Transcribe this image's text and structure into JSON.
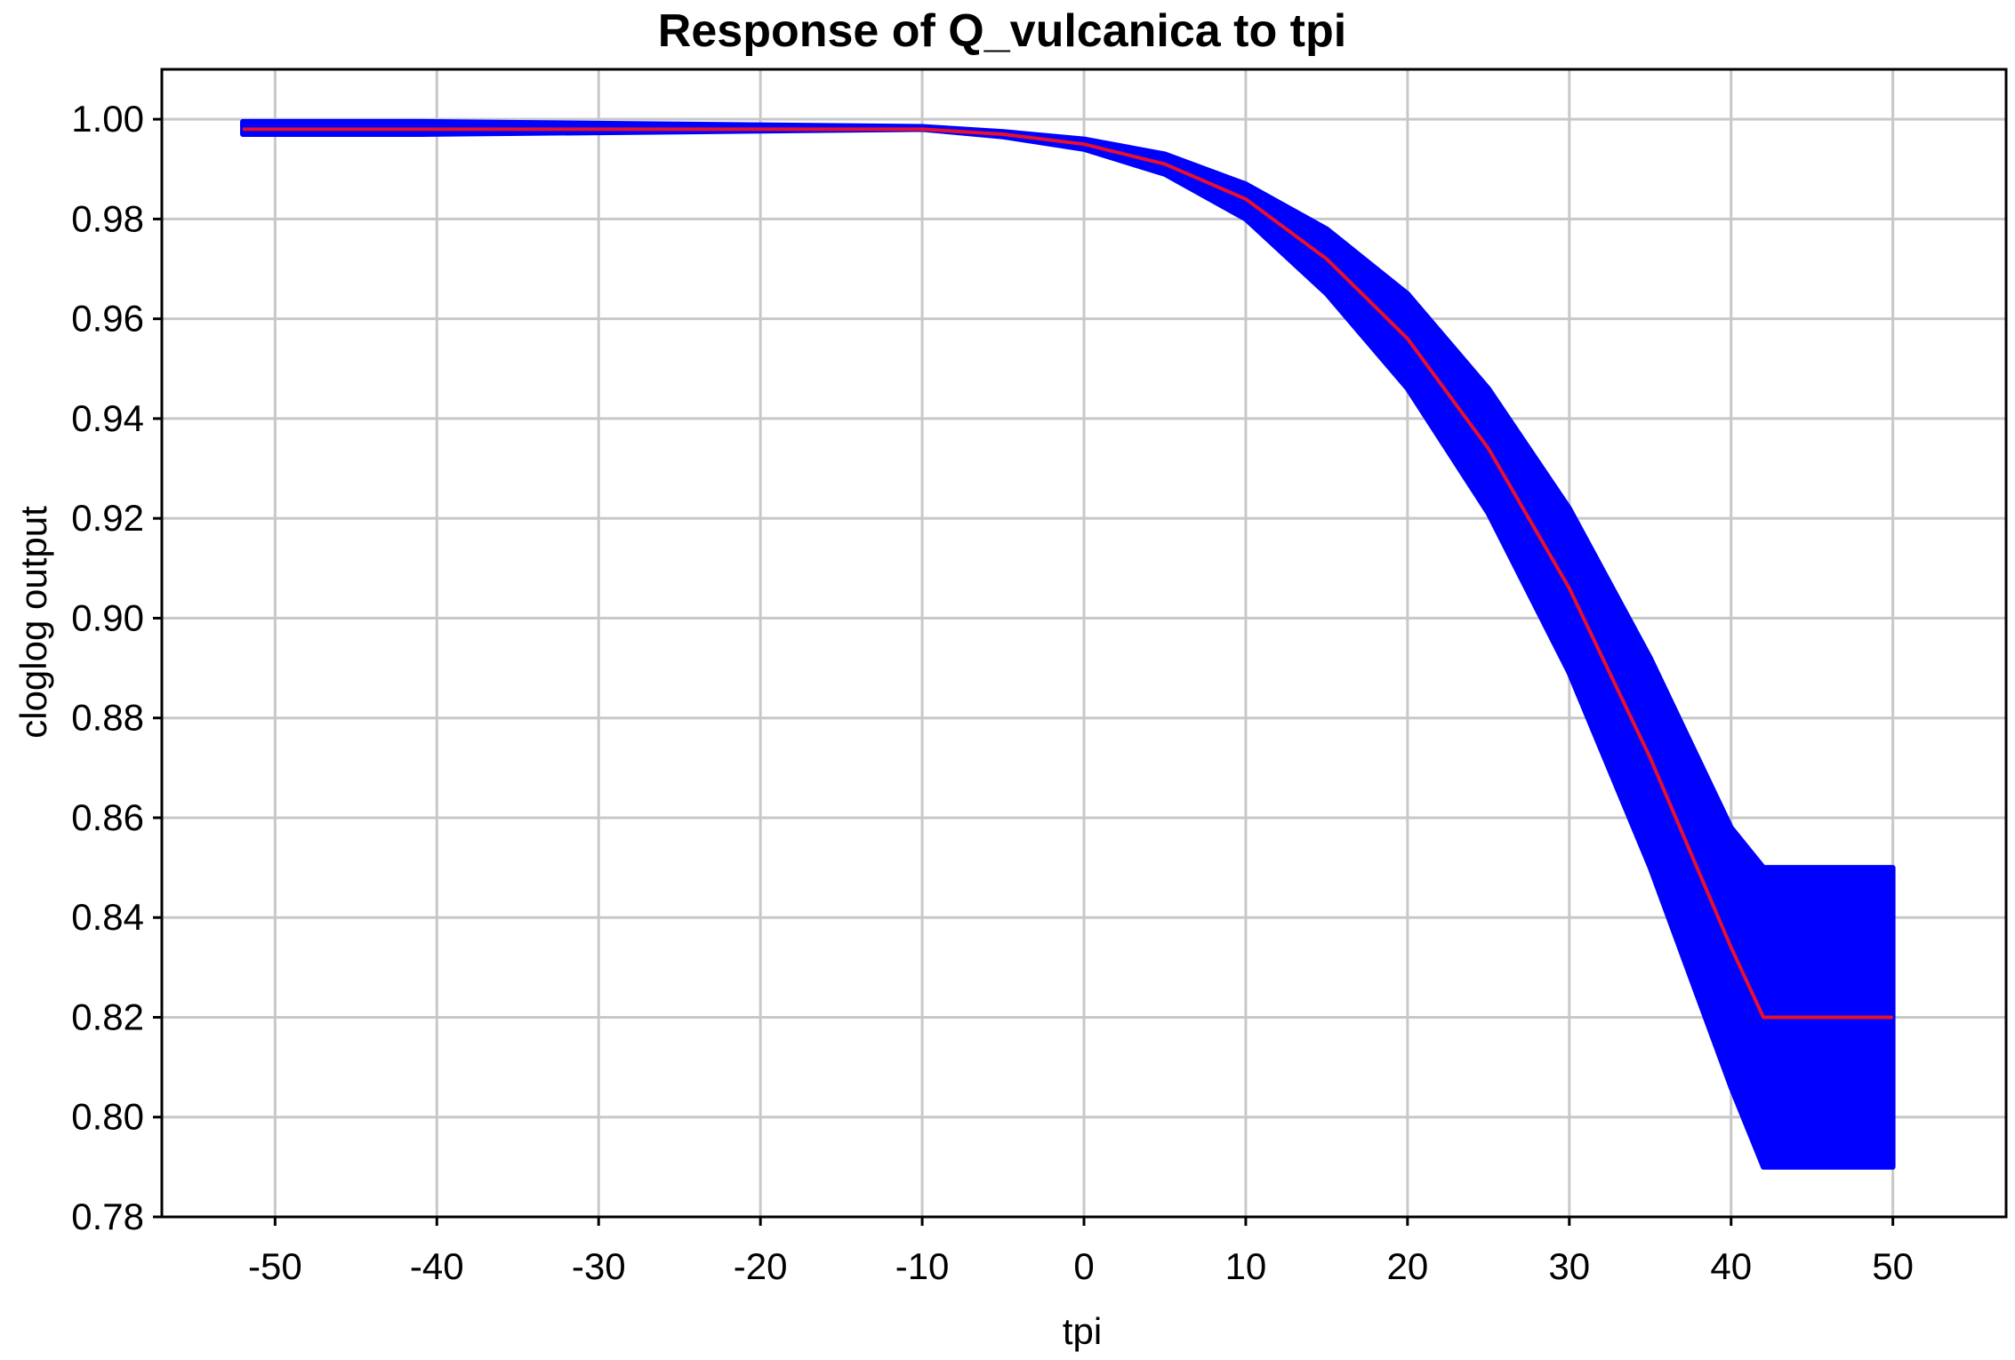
{
  "chart_data": {
    "type": "line",
    "title": "Response of Q_vulcanica to tpi",
    "xlabel": "tpi",
    "ylabel": "cloglog output",
    "xlim": [
      -57,
      57
    ],
    "ylim": [
      0.78,
      1.01
    ],
    "grid": true,
    "x_ticks": [
      -50,
      -40,
      -30,
      -20,
      -10,
      0,
      10,
      20,
      30,
      40,
      50
    ],
    "x_tick_labels": [
      "-50",
      "-40",
      "-30",
      "-20",
      "-10",
      "0",
      "10",
      "20",
      "30",
      "40",
      "50"
    ],
    "y_ticks": [
      0.78,
      0.8,
      0.82,
      0.84,
      0.86,
      0.88,
      0.9,
      0.92,
      0.94,
      0.96,
      0.98,
      1.0
    ],
    "y_tick_labels": [
      "0.78",
      "0.80",
      "0.82",
      "0.84",
      "0.86",
      "0.88",
      "0.90",
      "0.92",
      "0.94",
      "0.96",
      "0.98",
      "1.00"
    ],
    "series": [
      {
        "role": "mean",
        "color": "#e8102a",
        "x": [
          -52,
          -41,
          -25,
          -10,
          -5,
          0,
          5,
          10,
          15,
          20,
          25,
          30,
          35,
          40,
          42,
          50
        ],
        "y": [
          0.998,
          0.998,
          0.998,
          0.998,
          0.997,
          0.995,
          0.991,
          0.984,
          0.972,
          0.956,
          0.934,
          0.906,
          0.872,
          0.834,
          0.82,
          0.82
        ]
      },
      {
        "role": "band",
        "color": "#0000ff",
        "x": [
          -52,
          -41,
          -25,
          -10,
          -5,
          0,
          5,
          10,
          15,
          20,
          25,
          30,
          35,
          40,
          42,
          50
        ],
        "lower": [
          0.997,
          0.997,
          0.9975,
          0.998,
          0.9965,
          0.994,
          0.989,
          0.98,
          0.965,
          0.946,
          0.921,
          0.889,
          0.85,
          0.806,
          0.79,
          0.79
        ],
        "upper": [
          0.9995,
          0.9995,
          0.999,
          0.9985,
          0.9975,
          0.996,
          0.993,
          0.987,
          0.978,
          0.965,
          0.946,
          0.922,
          0.892,
          0.858,
          0.85,
          0.85
        ]
      }
    ]
  }
}
